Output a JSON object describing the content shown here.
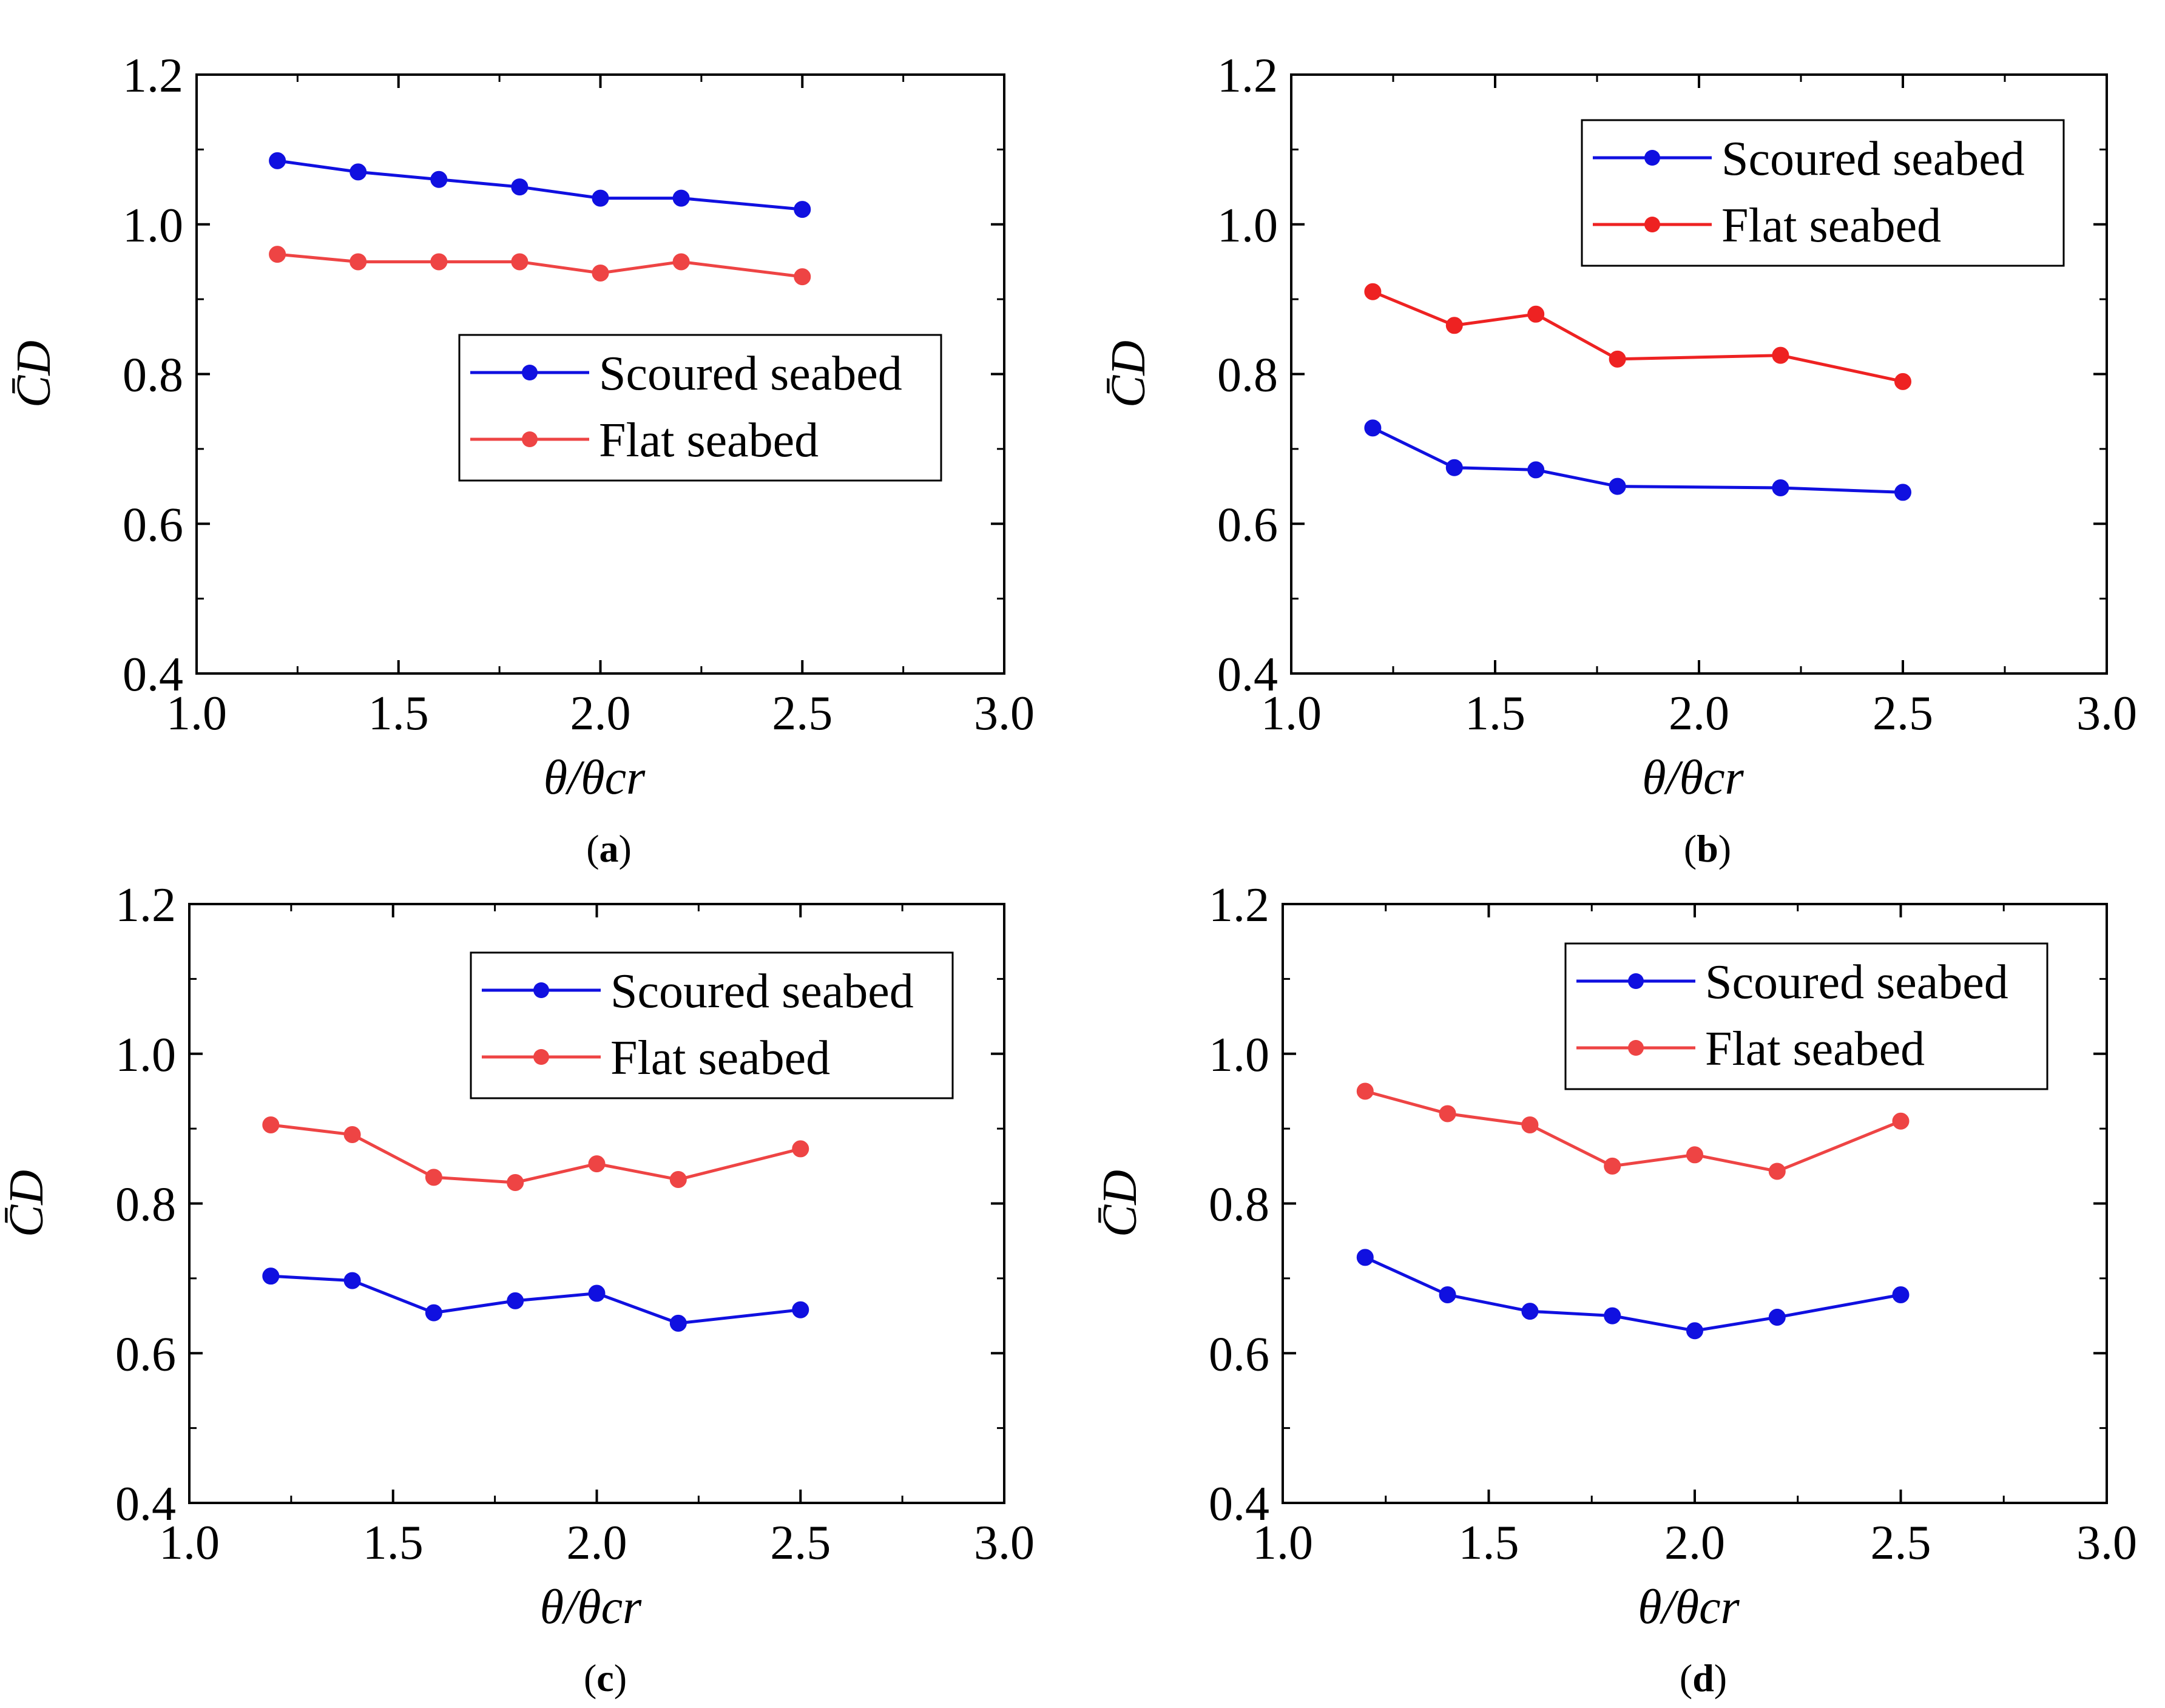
{
  "chart_data": [
    {
      "type": "line",
      "panel_label": "a",
      "xlabel": "θ/θcr",
      "ylabel": "C̄D",
      "xlim": [
        1.0,
        3.0
      ],
      "ylim": [
        0.4,
        1.2
      ],
      "xticks": [
        "1.0",
        "1.5",
        "2.0",
        "2.5",
        "3.0"
      ],
      "yticks": [
        "0.4",
        "0.6",
        "0.8",
        "1.0",
        "1.2"
      ],
      "legend_position": "center-right",
      "x": [
        1.2,
        1.4,
        1.6,
        1.8,
        2.0,
        2.2,
        2.5
      ],
      "series": [
        {
          "name": "Scoured seabed",
          "color": "#1010e0",
          "values": [
            1.085,
            1.07,
            1.06,
            1.05,
            1.035,
            1.035,
            1.02
          ]
        },
        {
          "name": "Flat seabed",
          "color": "#ee4444",
          "values": [
            0.96,
            0.95,
            0.95,
            0.95,
            0.935,
            0.95,
            0.93
          ]
        }
      ]
    },
    {
      "type": "line",
      "panel_label": "b",
      "xlabel": "θ/θcr",
      "ylabel": "C̄D",
      "xlim": [
        1.0,
        3.0
      ],
      "ylim": [
        0.4,
        1.2
      ],
      "xticks": [
        "1.0",
        "1.5",
        "2.0",
        "2.5",
        "3.0"
      ],
      "yticks": [
        "0.4",
        "0.6",
        "0.8",
        "1.0",
        "1.2"
      ],
      "legend_position": "top-right",
      "x": [
        1.2,
        1.4,
        1.6,
        1.8,
        2.2,
        2.5
      ],
      "series": [
        {
          "name": "Scoured seabed",
          "color": "#1010e0",
          "values": [
            0.728,
            0.675,
            0.672,
            0.65,
            0.648,
            0.642
          ]
        },
        {
          "name": "Flat seabed",
          "color": "#ee2222",
          "values": [
            0.91,
            0.865,
            0.88,
            0.82,
            0.825,
            0.79
          ]
        }
      ]
    },
    {
      "type": "line",
      "panel_label": "c",
      "xlabel": "θ/θcr",
      "ylabel": "C̄D",
      "xlim": [
        1.0,
        3.0
      ],
      "ylim": [
        0.4,
        1.2
      ],
      "xticks": [
        "1.0",
        "1.5",
        "2.0",
        "2.5",
        "3.0"
      ],
      "yticks": [
        "0.4",
        "0.6",
        "0.8",
        "1.0",
        "1.2"
      ],
      "legend_position": "top-right",
      "x": [
        1.2,
        1.4,
        1.6,
        1.8,
        2.0,
        2.2,
        2.5
      ],
      "series": [
        {
          "name": "Scoured seabed",
          "color": "#1010e0",
          "values": [
            0.703,
            0.697,
            0.654,
            0.67,
            0.68,
            0.64,
            0.658
          ]
        },
        {
          "name": "Flat seabed",
          "color": "#ee4444",
          "values": [
            0.905,
            0.892,
            0.835,
            0.828,
            0.853,
            0.832,
            0.873
          ]
        }
      ]
    },
    {
      "type": "line",
      "panel_label": "d",
      "xlabel": "θ/θcr",
      "ylabel": "C̄D",
      "xlim": [
        1.0,
        3.0
      ],
      "ylim": [
        0.4,
        1.2
      ],
      "xticks": [
        "1.0",
        "1.5",
        "2.0",
        "2.5",
        "3.0"
      ],
      "yticks": [
        "0.4",
        "0.6",
        "0.8",
        "1.0",
        "1.2"
      ],
      "legend_position": "top-right",
      "x": [
        1.2,
        1.4,
        1.6,
        1.8,
        2.0,
        2.2,
        2.5
      ],
      "series": [
        {
          "name": "Scoured seabed",
          "color": "#1010e0",
          "values": [
            0.728,
            0.678,
            0.656,
            0.65,
            0.63,
            0.648,
            0.678
          ]
        },
        {
          "name": "Flat seabed",
          "color": "#ee4444",
          "values": [
            0.95,
            0.92,
            0.905,
            0.85,
            0.865,
            0.843,
            0.91
          ]
        }
      ]
    }
  ]
}
